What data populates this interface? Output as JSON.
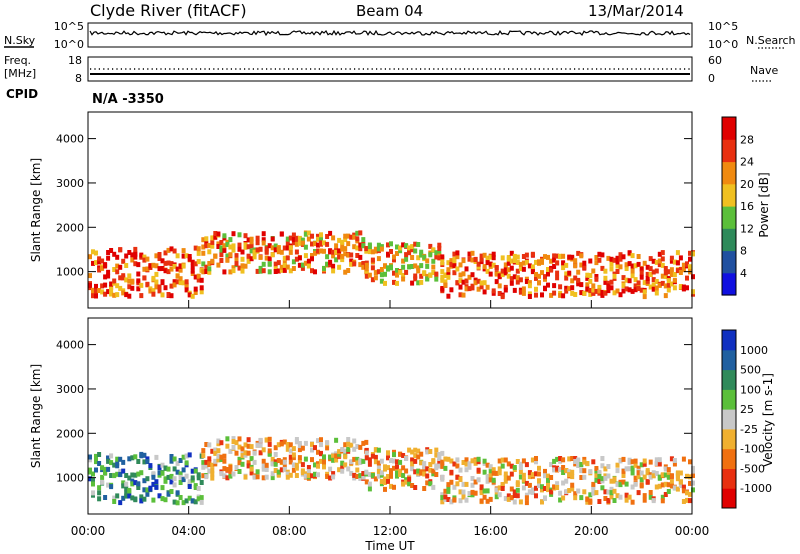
{
  "header": {
    "title": "Clyde River (fitACF)",
    "beam": "Beam 04",
    "date": "13/Mar/2014"
  },
  "noise_panel": {
    "left_label": "N.Sky",
    "right_label": "N.Search",
    "left_ticks": [
      "10^5",
      "10^0"
    ],
    "right_ticks": [
      "10^5",
      "10^0"
    ]
  },
  "freq_panel": {
    "left_label_1": "Freq.",
    "left_label_2": "[MHz]",
    "right_label": "Nave",
    "left_ticks": [
      "18",
      "8"
    ],
    "right_ticks": [
      "60",
      "0"
    ],
    "cpid_label": "CPID",
    "cpid_value": "N/A -3350"
  },
  "chart_data": [
    {
      "type": "heatmap",
      "name": "power",
      "ylabel": "Slant Range [km]",
      "xlabel": "Time UT",
      "ylim": [
        180,
        4600
      ],
      "yticks": [
        "1000",
        "2000",
        "3000",
        "4000"
      ],
      "xticks": [
        "00:00",
        "04:00",
        "08:00",
        "12:00",
        "16:00",
        "20:00",
        "00:00"
      ],
      "colorbar": {
        "label": "Power [dB]",
        "ticks": [
          "4",
          "8",
          "12",
          "16",
          "20",
          "24",
          "28"
        ],
        "colors": [
          "#1010e0",
          "#2050a0",
          "#2e8a5a",
          "#5bbf3a",
          "#f0c020",
          "#f08a10",
          "#e83010",
          "#e00000"
        ]
      },
      "scatter_bands": [
        {
          "t0": 0.0,
          "t1": 4.5,
          "center": 1000,
          "spread": 550,
          "power": 26
        },
        {
          "t0": 4.5,
          "t1": 11.0,
          "center": 1450,
          "spread": 450,
          "power": 24
        },
        {
          "t0": 11.0,
          "t1": 14.0,
          "center": 1200,
          "spread": 450,
          "power": 22
        },
        {
          "t0": 14.0,
          "t1": 24.0,
          "center": 950,
          "spread": 500,
          "power": 26
        }
      ]
    },
    {
      "type": "heatmap",
      "name": "velocity",
      "ylabel": "Slant Range [km]",
      "xlabel": "Time UT",
      "ylim": [
        180,
        4600
      ],
      "yticks": [
        "1000",
        "2000",
        "3000",
        "4000"
      ],
      "xticks": [
        "00:00",
        "04:00",
        "08:00",
        "12:00",
        "16:00",
        "20:00",
        "00:00"
      ],
      "colorbar": {
        "label": "Velocity [m s-1]",
        "ticks": [
          "1000",
          "500",
          "100",
          "25",
          "-25",
          "-100",
          "-500",
          "-1000"
        ],
        "colors": [
          "#1030c0",
          "#2060a0",
          "#308a5a",
          "#5bbf3a",
          "#c8c8c8",
          "#f0b030",
          "#f07010",
          "#e83010",
          "#e00000"
        ]
      },
      "scatter_bands": [
        {
          "t0": 0.0,
          "t1": 4.5,
          "center": 1000,
          "spread": 550,
          "velocity": 100
        },
        {
          "t0": 4.5,
          "t1": 11.0,
          "center": 1450,
          "spread": 450,
          "velocity": -100
        },
        {
          "t0": 11.0,
          "t1": 14.0,
          "center": 1200,
          "spread": 450,
          "velocity": -300
        },
        {
          "t0": 14.0,
          "t1": 24.0,
          "center": 950,
          "spread": 500,
          "velocity": -200
        }
      ]
    }
  ]
}
